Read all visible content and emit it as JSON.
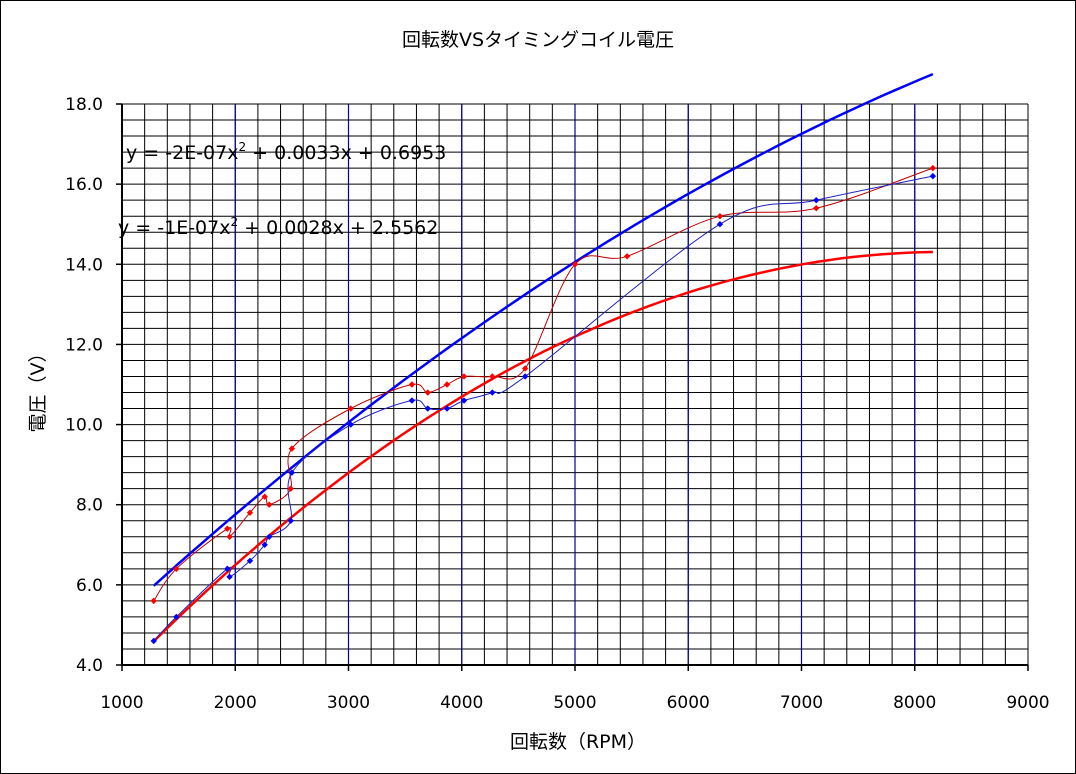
{
  "chart_data": {
    "type": "scatter",
    "title": "回転数VSタイミングコイル電圧",
    "xlabel": "回転数（RPM）",
    "ylabel": "電圧（V）",
    "xlim": [
      1000,
      9000
    ],
    "ylim": [
      4.0,
      18.0
    ],
    "x_ticks": [
      "1000",
      "2000",
      "3000",
      "4000",
      "5000",
      "6000",
      "7000",
      "8000",
      "9000"
    ],
    "y_ticks": [
      "4.0",
      "6.0",
      "8.0",
      "10.0",
      "12.0",
      "14.0",
      "16.0",
      "18.0"
    ],
    "grid": true,
    "legend": "none",
    "series": [
      {
        "color": "#ff0000",
        "x": [
          1280,
          1480,
          1930,
          1950,
          2130,
          2260,
          2300,
          2490,
          2500,
          3020,
          3560,
          3700,
          3870,
          4020,
          4270,
          4560,
          5000,
          5460,
          6280,
          7130,
          8160
        ],
        "y": [
          5.6,
          6.4,
          7.4,
          7.2,
          7.8,
          8.2,
          8.0,
          8.4,
          9.4,
          10.4,
          11.0,
          10.8,
          11.0,
          11.2,
          11.2,
          11.4,
          14.0,
          14.2,
          15.2,
          15.4,
          16.4
        ]
      },
      {
        "color": "#0000ff",
        "x": [
          1280,
          1480,
          1930,
          1950,
          2130,
          2260,
          2300,
          2490,
          2500,
          3020,
          3560,
          3700,
          3870,
          4020,
          4270,
          4560,
          6280,
          7130,
          8160
        ],
        "y": [
          4.6,
          5.2,
          6.4,
          6.2,
          6.6,
          7.0,
          7.2,
          7.6,
          8.8,
          10.0,
          10.6,
          10.4,
          10.4,
          10.6,
          10.8,
          11.2,
          15.0,
          15.6,
          16.2
        ]
      }
    ],
    "trendlines": [
      {
        "color": "#ff0000",
        "label": "y = -2E-07x2 + 0.0033x + 0.6953",
        "equation_main": "y = -2E-07x",
        "equation_sup": "2",
        "equation_tail": " + 0.0033x + 0.6953",
        "a": -2e-07,
        "b": 0.0033,
        "c": 0.6953,
        "xrange": [
          1280,
          8160
        ]
      },
      {
        "color": "#0000ff",
        "label": "y = -1E-07x2 + 0.0028x + 2.5562",
        "equation_main": "y = -1E-07x",
        "equation_sup": "2",
        "equation_tail": " + 0.0028x + 2.5562",
        "a": -1e-07,
        "b": 0.0028,
        "c": 2.5562,
        "xrange": [
          1280,
          8160
        ]
      }
    ]
  }
}
